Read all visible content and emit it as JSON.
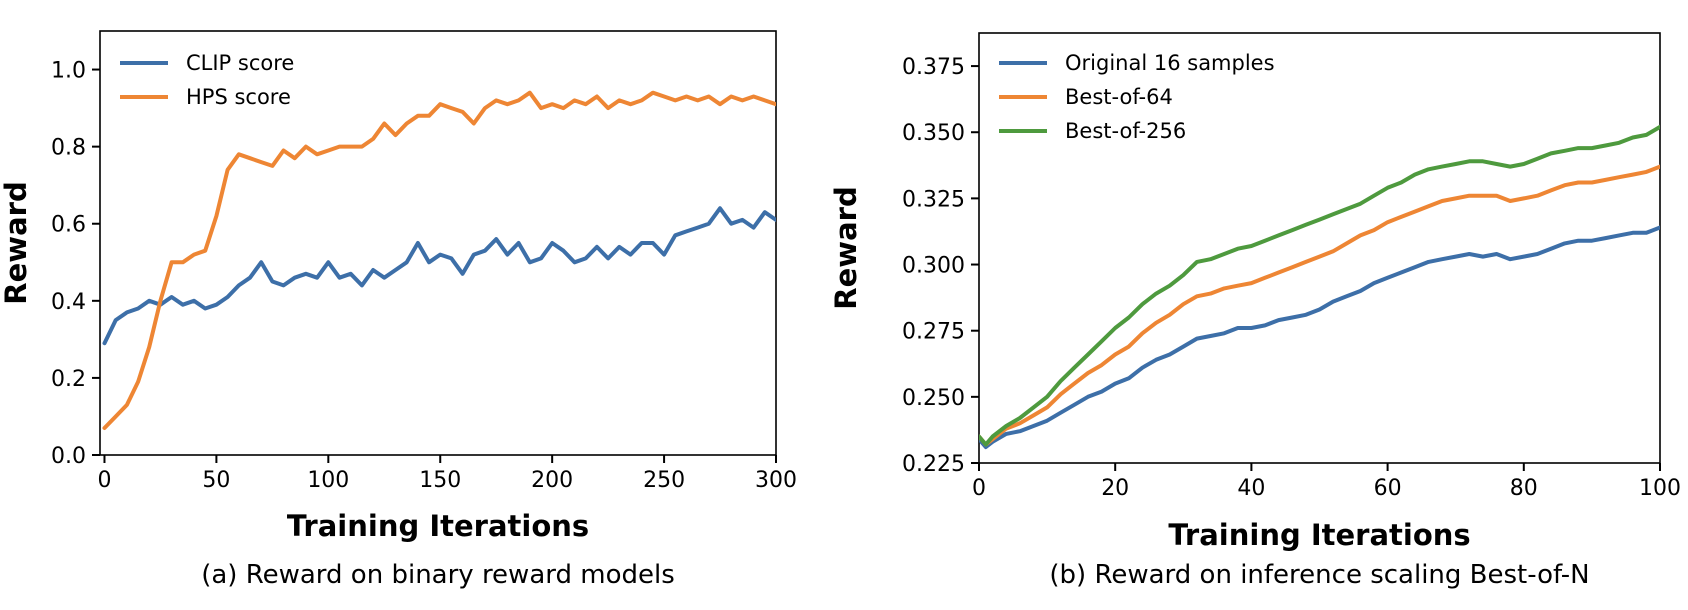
{
  "chart_data": [
    {
      "type": "line",
      "caption": "(a) Reward on binary reward models",
      "xlabel": "Training Iterations",
      "ylabel": "Reward",
      "xlim": [
        -2,
        300
      ],
      "ylim": [
        0.0,
        1.1
      ],
      "xticks": [
        0,
        50,
        100,
        150,
        200,
        250,
        300
      ],
      "xtick_labels": [
        "0",
        "50",
        "100",
        "150",
        "200",
        "250",
        "300"
      ],
      "yticks": [
        0.0,
        0.2,
        0.4,
        0.6,
        0.8,
        1.0
      ],
      "ytick_labels": [
        "0.0",
        "0.2",
        "0.4",
        "0.6",
        "0.8",
        "1.0"
      ],
      "grid": false,
      "legend_position": "upper-left",
      "series": [
        {
          "name": "CLIP score",
          "color": "#3d6fa8",
          "x": [
            0,
            5,
            10,
            15,
            20,
            25,
            30,
            35,
            40,
            45,
            50,
            55,
            60,
            65,
            70,
            75,
            80,
            85,
            90,
            95,
            100,
            105,
            110,
            115,
            120,
            125,
            130,
            135,
            140,
            145,
            150,
            155,
            160,
            165,
            170,
            175,
            180,
            185,
            190,
            195,
            200,
            205,
            210,
            215,
            220,
            225,
            230,
            235,
            240,
            245,
            250,
            255,
            260,
            265,
            270,
            275,
            280,
            285,
            290,
            295,
            300
          ],
          "y": [
            0.29,
            0.35,
            0.37,
            0.38,
            0.4,
            0.39,
            0.41,
            0.39,
            0.4,
            0.38,
            0.39,
            0.41,
            0.44,
            0.46,
            0.5,
            0.45,
            0.44,
            0.46,
            0.47,
            0.46,
            0.5,
            0.46,
            0.47,
            0.44,
            0.48,
            0.46,
            0.48,
            0.5,
            0.55,
            0.5,
            0.52,
            0.51,
            0.47,
            0.52,
            0.53,
            0.56,
            0.52,
            0.55,
            0.5,
            0.51,
            0.55,
            0.53,
            0.5,
            0.51,
            0.54,
            0.51,
            0.54,
            0.52,
            0.55,
            0.55,
            0.52,
            0.57,
            0.58,
            0.59,
            0.6,
            0.64,
            0.6,
            0.61,
            0.59,
            0.63,
            0.61
          ]
        },
        {
          "name": "HPS score",
          "color": "#ee8634",
          "x": [
            0,
            5,
            10,
            15,
            20,
            25,
            30,
            35,
            40,
            45,
            50,
            55,
            60,
            65,
            70,
            75,
            80,
            85,
            90,
            95,
            100,
            105,
            110,
            115,
            120,
            125,
            130,
            135,
            140,
            145,
            150,
            155,
            160,
            165,
            170,
            175,
            180,
            185,
            190,
            195,
            200,
            205,
            210,
            215,
            220,
            225,
            230,
            235,
            240,
            245,
            250,
            255,
            260,
            265,
            270,
            275,
            280,
            285,
            290,
            295,
            300
          ],
          "y": [
            0.07,
            0.1,
            0.13,
            0.19,
            0.28,
            0.4,
            0.5,
            0.5,
            0.52,
            0.53,
            0.62,
            0.74,
            0.78,
            0.77,
            0.76,
            0.75,
            0.79,
            0.77,
            0.8,
            0.78,
            0.79,
            0.8,
            0.8,
            0.8,
            0.82,
            0.86,
            0.83,
            0.86,
            0.88,
            0.88,
            0.91,
            0.9,
            0.89,
            0.86,
            0.9,
            0.92,
            0.91,
            0.92,
            0.94,
            0.9,
            0.91,
            0.9,
            0.92,
            0.91,
            0.93,
            0.9,
            0.92,
            0.91,
            0.92,
            0.94,
            0.93,
            0.92,
            0.93,
            0.92,
            0.93,
            0.91,
            0.93,
            0.92,
            0.93,
            0.92,
            0.91
          ]
        }
      ]
    },
    {
      "type": "line",
      "caption": "(b) Reward on inference scaling Best-of-N",
      "xlabel": "Training Iterations",
      "ylabel": "Reward",
      "xlim": [
        0,
        100
      ],
      "ylim": [
        0.225,
        0.3875
      ],
      "xticks": [
        0,
        20,
        40,
        60,
        80,
        100
      ],
      "xtick_labels": [
        "0",
        "20",
        "40",
        "60",
        "80",
        "100"
      ],
      "yticks": [
        0.225,
        0.25,
        0.275,
        0.3,
        0.325,
        0.35,
        0.375
      ],
      "ytick_labels": [
        "0.225",
        "0.250",
        "0.275",
        "0.300",
        "0.325",
        "0.350",
        "0.375"
      ],
      "grid": false,
      "legend_position": "upper-left",
      "series": [
        {
          "name": "Original 16 samples",
          "color": "#3d6fa8",
          "x": [
            0,
            1,
            2,
            4,
            6,
            8,
            10,
            12,
            14,
            16,
            18,
            20,
            22,
            24,
            26,
            28,
            30,
            32,
            34,
            36,
            38,
            40,
            42,
            44,
            46,
            48,
            50,
            52,
            54,
            56,
            58,
            60,
            62,
            64,
            66,
            68,
            70,
            72,
            74,
            76,
            78,
            80,
            82,
            84,
            86,
            88,
            90,
            92,
            94,
            96,
            98,
            100
          ],
          "y": [
            0.234,
            0.231,
            0.233,
            0.236,
            0.237,
            0.239,
            0.241,
            0.244,
            0.247,
            0.25,
            0.252,
            0.255,
            0.257,
            0.261,
            0.264,
            0.266,
            0.269,
            0.272,
            0.273,
            0.274,
            0.276,
            0.276,
            0.277,
            0.279,
            0.28,
            0.281,
            0.283,
            0.286,
            0.288,
            0.29,
            0.293,
            0.295,
            0.297,
            0.299,
            0.301,
            0.302,
            0.303,
            0.304,
            0.303,
            0.304,
            0.302,
            0.303,
            0.304,
            0.306,
            0.308,
            0.309,
            0.309,
            0.31,
            0.311,
            0.312,
            0.312,
            0.314
          ]
        },
        {
          "name": "Best-of-64",
          "color": "#ee8634",
          "x": [
            0,
            1,
            2,
            4,
            6,
            8,
            10,
            12,
            14,
            16,
            18,
            20,
            22,
            24,
            26,
            28,
            30,
            32,
            34,
            36,
            38,
            40,
            42,
            44,
            46,
            48,
            50,
            52,
            54,
            56,
            58,
            60,
            62,
            64,
            66,
            68,
            70,
            72,
            74,
            76,
            78,
            80,
            82,
            84,
            86,
            88,
            90,
            92,
            94,
            96,
            98,
            100
          ],
          "y": [
            0.235,
            0.232,
            0.234,
            0.238,
            0.24,
            0.243,
            0.246,
            0.251,
            0.255,
            0.259,
            0.262,
            0.266,
            0.269,
            0.274,
            0.278,
            0.281,
            0.285,
            0.288,
            0.289,
            0.291,
            0.292,
            0.293,
            0.295,
            0.297,
            0.299,
            0.301,
            0.303,
            0.305,
            0.308,
            0.311,
            0.313,
            0.316,
            0.318,
            0.32,
            0.322,
            0.324,
            0.325,
            0.326,
            0.326,
            0.326,
            0.324,
            0.325,
            0.326,
            0.328,
            0.33,
            0.331,
            0.331,
            0.332,
            0.333,
            0.334,
            0.335,
            0.337
          ]
        },
        {
          "name": "Best-of-256",
          "color": "#4e9a3e",
          "x": [
            0,
            1,
            2,
            4,
            6,
            8,
            10,
            12,
            14,
            16,
            18,
            20,
            22,
            24,
            26,
            28,
            30,
            32,
            34,
            36,
            38,
            40,
            42,
            44,
            46,
            48,
            50,
            52,
            54,
            56,
            58,
            60,
            62,
            64,
            66,
            68,
            70,
            72,
            74,
            76,
            78,
            80,
            82,
            84,
            86,
            88,
            90,
            92,
            94,
            96,
            98,
            100
          ],
          "y": [
            0.235,
            0.232,
            0.235,
            0.239,
            0.242,
            0.246,
            0.25,
            0.256,
            0.261,
            0.266,
            0.271,
            0.276,
            0.28,
            0.285,
            0.289,
            0.292,
            0.296,
            0.301,
            0.302,
            0.304,
            0.306,
            0.307,
            0.309,
            0.311,
            0.313,
            0.315,
            0.317,
            0.319,
            0.321,
            0.323,
            0.326,
            0.329,
            0.331,
            0.334,
            0.336,
            0.337,
            0.338,
            0.339,
            0.339,
            0.338,
            0.337,
            0.338,
            0.34,
            0.342,
            0.343,
            0.344,
            0.344,
            0.345,
            0.346,
            0.348,
            0.349,
            0.352
          ]
        }
      ]
    }
  ]
}
